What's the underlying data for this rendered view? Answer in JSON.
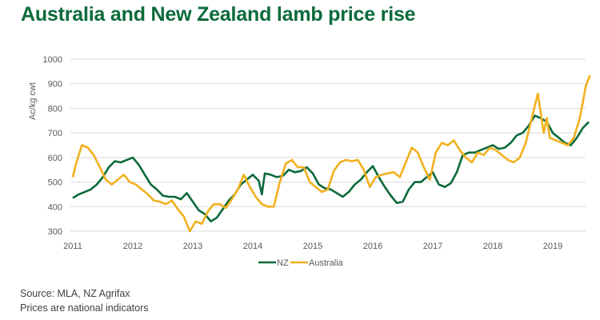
{
  "chart_data": {
    "type": "line",
    "title": "Australia and New Zealand lamb price rise",
    "xlabel": "",
    "ylabel": "Ac/kg cwt",
    "xlim": [
      2011,
      2019.62
    ],
    "ylim": [
      300,
      1000
    ],
    "yticks": [
      300,
      400,
      500,
      600,
      700,
      800,
      900,
      1000
    ],
    "xticks": [
      "2011",
      "2012",
      "2013",
      "2014",
      "2015",
      "2016",
      "2017",
      "2018",
      "2019"
    ],
    "grid": true,
    "legend": {
      "placement": "bottom-center",
      "entries": [
        "NZ",
        "Australia"
      ]
    },
    "series": [
      {
        "name": "NZ",
        "color": "#0b6a3a",
        "x": [
          2011.0,
          2011.1,
          2011.2,
          2011.3,
          2011.4,
          2011.5,
          2011.6,
          2011.7,
          2011.8,
          2011.9,
          2012.0,
          2012.1,
          2012.2,
          2012.3,
          2012.4,
          2012.5,
          2012.6,
          2012.7,
          2012.8,
          2012.9,
          2013.0,
          2013.1,
          2013.2,
          2013.3,
          2013.4,
          2013.5,
          2013.6,
          2013.7,
          2013.8,
          2013.9,
          2014.0,
          2014.1,
          2014.15,
          2014.2,
          2014.3,
          2014.4,
          2014.5,
          2014.6,
          2014.7,
          2014.8,
          2014.9,
          2015.0,
          2015.1,
          2015.2,
          2015.3,
          2015.4,
          2015.5,
          2015.6,
          2015.7,
          2015.8,
          2015.9,
          2016.0,
          2016.1,
          2016.2,
          2016.3,
          2016.4,
          2016.5,
          2016.6,
          2016.7,
          2016.8,
          2016.9,
          2017.0,
          2017.1,
          2017.2,
          2017.3,
          2017.4,
          2017.5,
          2017.6,
          2017.7,
          2017.8,
          2017.9,
          2018.0,
          2018.1,
          2018.2,
          2018.3,
          2018.4,
          2018.5,
          2018.6,
          2018.7,
          2018.8,
          2018.9,
          2019.0,
          2019.1,
          2019.2,
          2019.3,
          2019.4,
          2019.5,
          2019.6
        ],
        "values": [
          435,
          450,
          460,
          470,
          490,
          520,
          560,
          585,
          580,
          590,
          600,
          570,
          530,
          490,
          470,
          445,
          440,
          440,
          430,
          455,
          420,
          385,
          370,
          340,
          355,
          390,
          425,
          450,
          490,
          510,
          530,
          505,
          450,
          535,
          530,
          520,
          525,
          550,
          540,
          545,
          560,
          535,
          490,
          475,
          470,
          455,
          440,
          460,
          490,
          510,
          540,
          565,
          520,
          480,
          445,
          415,
          420,
          470,
          500,
          500,
          520,
          540,
          490,
          480,
          495,
          540,
          610,
          620,
          620,
          630,
          640,
          650,
          635,
          640,
          660,
          690,
          700,
          730,
          770,
          760,
          745,
          700,
          680,
          660,
          650,
          680,
          720,
          745
        ]
      },
      {
        "name": "Australia",
        "color": "#f2b01e",
        "x": [
          2011.0,
          2011.05,
          2011.1,
          2011.15,
          2011.25,
          2011.35,
          2011.45,
          2011.55,
          2011.65,
          2011.75,
          2011.85,
          2011.95,
          2012.05,
          2012.15,
          2012.25,
          2012.35,
          2012.45,
          2012.55,
          2012.65,
          2012.75,
          2012.85,
          2012.95,
          2013.05,
          2013.15,
          2013.25,
          2013.35,
          2013.45,
          2013.55,
          2013.65,
          2013.75,
          2013.85,
          2013.95,
          2014.05,
          2014.15,
          2014.25,
          2014.35,
          2014.45,
          2014.55,
          2014.65,
          2014.75,
          2014.85,
          2014.95,
          2015.05,
          2015.15,
          2015.25,
          2015.35,
          2015.45,
          2015.55,
          2015.65,
          2015.75,
          2015.85,
          2015.95,
          2016.05,
          2016.15,
          2016.25,
          2016.35,
          2016.45,
          2016.55,
          2016.65,
          2016.75,
          2016.85,
          2016.95,
          2017.05,
          2017.15,
          2017.25,
          2017.35,
          2017.45,
          2017.55,
          2017.65,
          2017.75,
          2017.85,
          2017.95,
          2018.05,
          2018.15,
          2018.25,
          2018.35,
          2018.45,
          2018.55,
          2018.65,
          2018.75,
          2018.8,
          2018.85,
          2018.9,
          2018.95,
          2019.05,
          2019.15,
          2019.25,
          2019.35,
          2019.45,
          2019.55,
          2019.62
        ],
        "values": [
          520,
          570,
          610,
          650,
          640,
          610,
          560,
          510,
          490,
          510,
          530,
          500,
          490,
          470,
          450,
          425,
          420,
          410,
          425,
          390,
          360,
          300,
          340,
          330,
          380,
          410,
          410,
          395,
          430,
          470,
          530,
          480,
          440,
          410,
          400,
          400,
          500,
          575,
          590,
          560,
          560,
          500,
          480,
          460,
          470,
          545,
          580,
          590,
          585,
          590,
          550,
          480,
          520,
          530,
          535,
          540,
          520,
          580,
          640,
          620,
          560,
          510,
          620,
          660,
          650,
          670,
          630,
          600,
          580,
          620,
          610,
          640,
          630,
          610,
          590,
          580,
          600,
          660,
          760,
          860,
          780,
          700,
          760,
          680,
          670,
          660,
          650,
          680,
          760,
          890,
          935
        ]
      }
    ]
  },
  "footer": {
    "source": "Source: MLA, NZ Agrifax",
    "note": "Prices are national indicators"
  }
}
